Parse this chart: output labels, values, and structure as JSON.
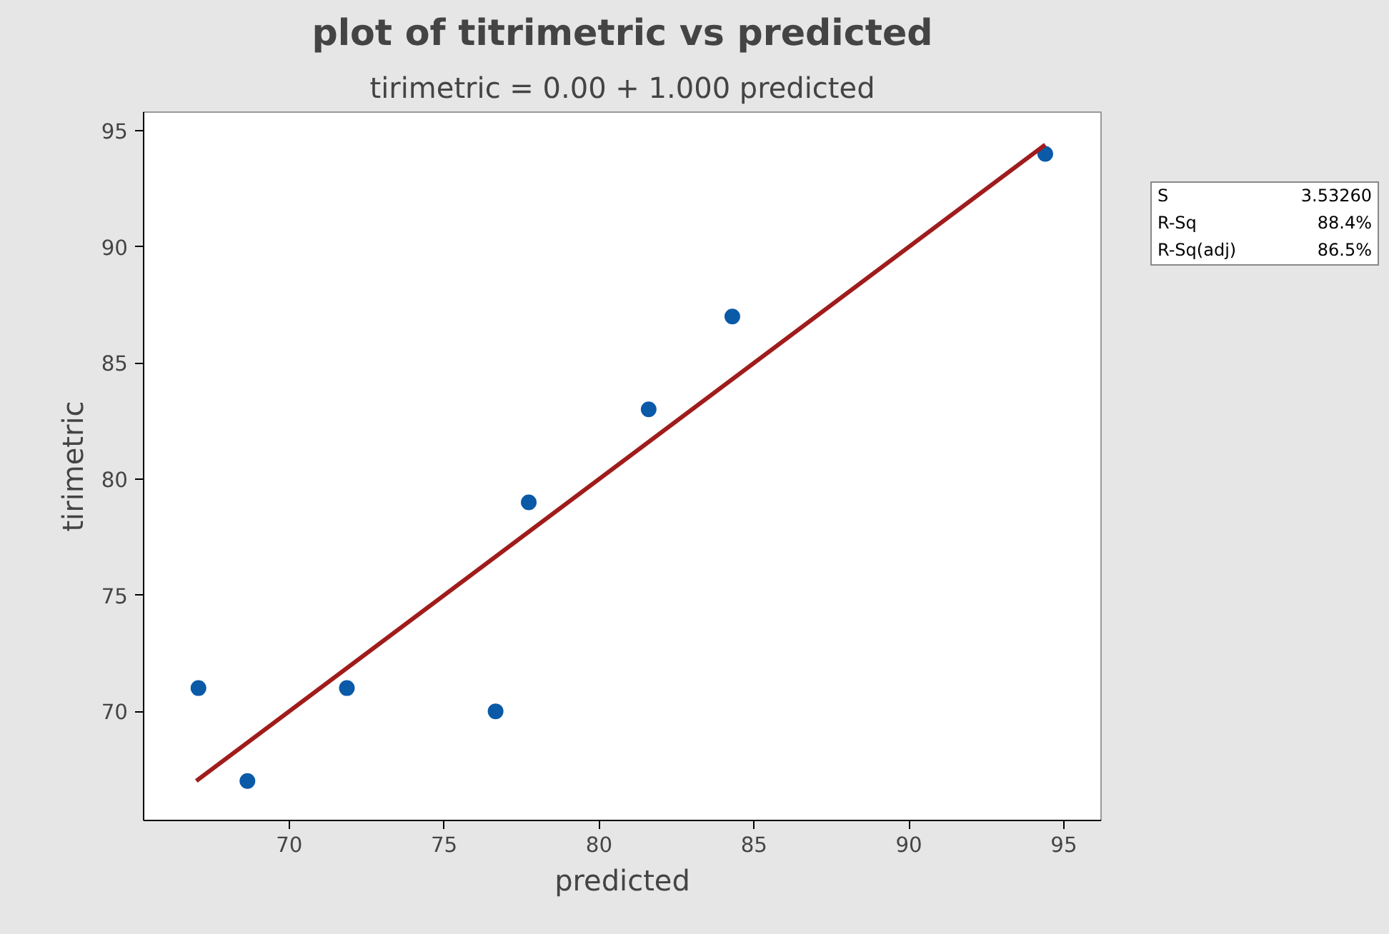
{
  "chart_data": {
    "type": "scatter",
    "title": "plot of titrimetric vs predicted",
    "subtitle": "tirimetric = 0.00 + 1.000 predicted",
    "xlabel": "predicted",
    "ylabel": "tirimetric",
    "xlim": [
      65.3,
      96.2
    ],
    "ylim": [
      65.3,
      95.8
    ],
    "xticks": [
      70,
      75,
      80,
      85,
      90,
      95
    ],
    "yticks": [
      70,
      75,
      80,
      85,
      90,
      95
    ],
    "grid": false,
    "series": [
      {
        "marker": "circle",
        "color": "#0a5aa8",
        "x": [
          67.07,
          68.65,
          71.86,
          76.66,
          77.73,
          81.6,
          84.3,
          94.4
        ],
        "values": [
          71,
          67,
          71,
          70,
          79,
          83,
          87,
          94
        ]
      },
      {
        "type": "line",
        "color": "#a01c1c",
        "x": [
          67.0,
          94.4
        ],
        "values": [
          67.0,
          94.4
        ],
        "line_style": "solid"
      }
    ],
    "annotations": [
      "S",
      "3.53260",
      "R-Sq",
      "88.4%",
      "R-Sq(adj)",
      "86.5%"
    ]
  }
}
